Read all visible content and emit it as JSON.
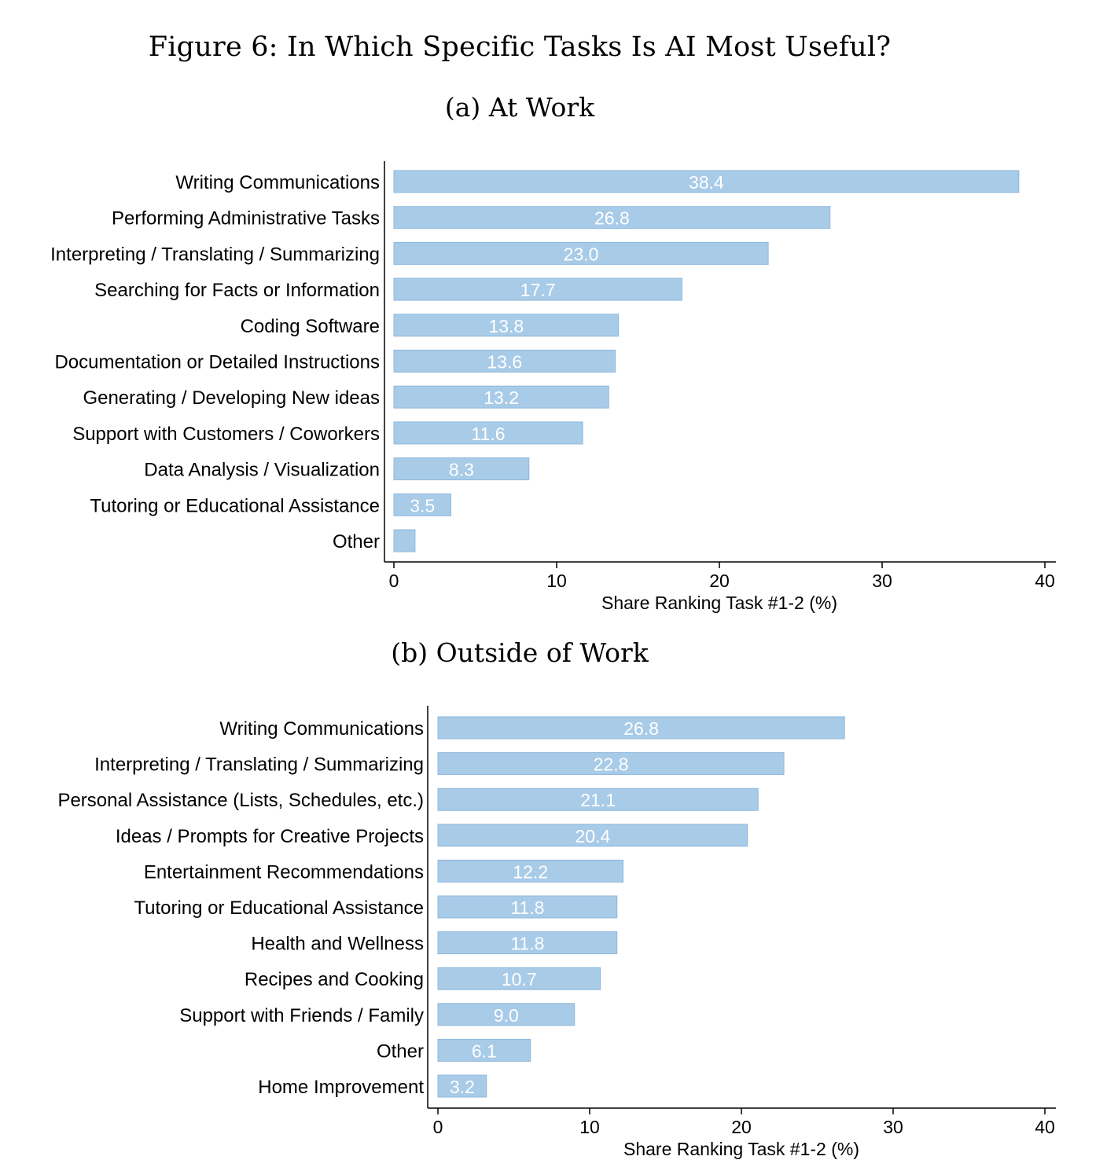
{
  "figure_title": "Figure 6: In Which Specific Tasks Is AI Most Useful?",
  "colors": {
    "bar": "#a8cbe8",
    "bar_stroke": "#8fb8dc",
    "value_label": "#ffffff",
    "axis": "#000000"
  },
  "chart_data": [
    {
      "type": "bar",
      "orientation": "horizontal",
      "title": "(a) At Work",
      "categories": [
        "Writing Communications",
        "Performing Administrative Tasks",
        "Interpreting / Translating / Summarizing",
        "Searching for Facts or Information",
        "Coding Software",
        "Documentation or Detailed Instructions",
        "Generating / Developing New ideas",
        "Support with Customers / Coworkers",
        "Data Analysis / Visualization",
        "Tutoring or Educational Assistance",
        "Other"
      ],
      "values": [
        38.4,
        26.8,
        23.0,
        17.7,
        13.8,
        13.6,
        13.2,
        11.6,
        8.3,
        3.5,
        1.3
      ],
      "value_labels": [
        "38.4",
        "26.8",
        "23.0",
        "17.7",
        "13.8",
        "13.6",
        "13.2",
        "11.6",
        "8.3",
        "3.5",
        ""
      ],
      "xlabel": "Share Ranking Task #1-2 (%)",
      "ylabel": "",
      "xlim": [
        0,
        40
      ],
      "xticks": [
        0,
        10,
        20,
        30,
        40
      ],
      "grid": false,
      "legend": "none"
    },
    {
      "type": "bar",
      "orientation": "horizontal",
      "title": "(b) Outside of Work",
      "categories": [
        "Writing Communications",
        "Interpreting / Translating / Summarizing",
        "Personal Assistance (Lists, Schedules, etc.)",
        "Ideas / Prompts for Creative Projects",
        "Entertainment Recommendations",
        "Tutoring or Educational Assistance",
        "Health and Wellness",
        "Recipes and Cooking",
        "Support with Friends / Family",
        "Other",
        "Home Improvement"
      ],
      "values": [
        26.8,
        22.8,
        21.1,
        20.4,
        12.2,
        11.8,
        11.8,
        10.7,
        9.0,
        6.1,
        3.2
      ],
      "value_labels": [
        "26.8",
        "22.8",
        "21.1",
        "20.4",
        "12.2",
        "11.8",
        "11.8",
        "10.7",
        "9.0",
        "6.1",
        "3.2"
      ],
      "xlabel": "Share Ranking Task #1-2 (%)",
      "ylabel": "",
      "xlim": [
        0,
        40
      ],
      "xticks": [
        0,
        10,
        20,
        30,
        40
      ],
      "grid": false,
      "legend": "none"
    }
  ]
}
